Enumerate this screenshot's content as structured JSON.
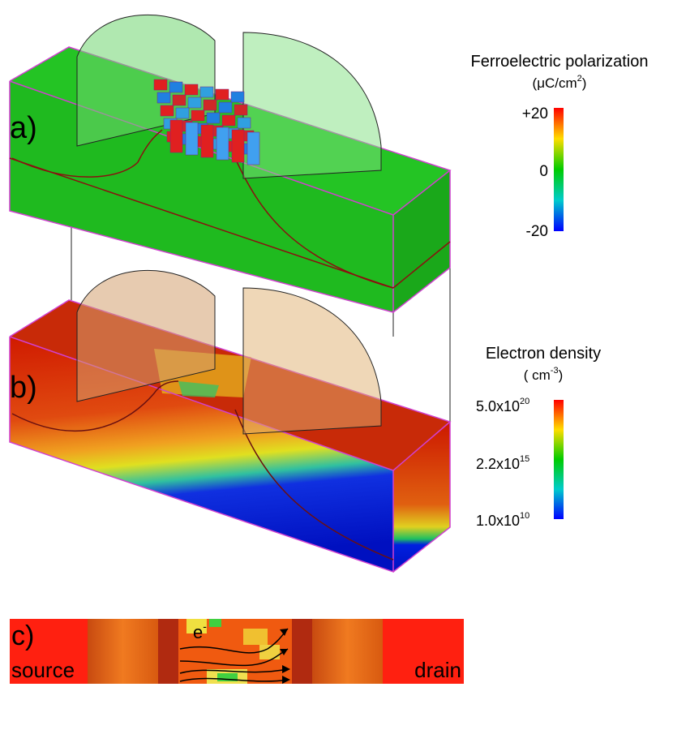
{
  "panels": [
    {
      "label": "a)"
    },
    {
      "label": "b)"
    },
    {
      "label": "c)",
      "electron": {
        "base": "e",
        "sup": "-"
      },
      "source": "source",
      "drain": "drain"
    }
  ],
  "legends": [
    {
      "title": "Ferroelectric polarization",
      "unit": {
        "prefix": "(μC/cm",
        "sup": "2",
        "suffix": ")"
      },
      "ticks": [
        "+20",
        "0",
        "-20"
      ]
    },
    {
      "title": "Electron density",
      "unit": {
        "prefix": "( cm",
        "sup": "-3",
        "suffix": ")"
      },
      "ticks": [
        {
          "base": "5.0x10",
          "sup": "20"
        },
        {
          "base": "2.2x10",
          "sup": "15"
        },
        {
          "base": "1.0x10",
          "sup": "10"
        }
      ]
    }
  ]
}
